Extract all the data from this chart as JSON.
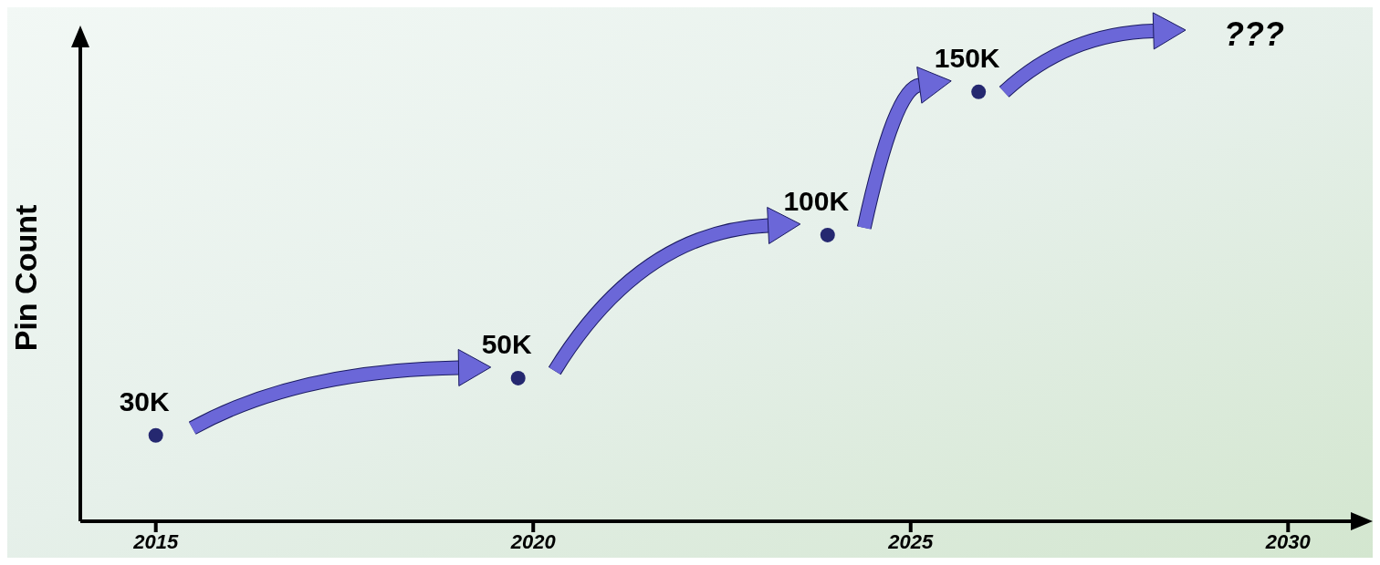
{
  "chart_data": {
    "type": "scatter",
    "ylabel": "Pin Count",
    "x": [
      2015,
      2019.8,
      2023.9,
      2025.9
    ],
    "values": [
      30,
      50,
      100,
      150
    ],
    "value_labels": [
      "30K",
      "50K",
      "100K",
      "150K"
    ],
    "color": "#252870",
    "marker": "circle",
    "xlim": [
      2014,
      2031
    ],
    "xticks": [
      2015,
      2020,
      2025,
      2030
    ],
    "ylim": [
      0,
      170
    ],
    "tick_labels": "x",
    "annotations": [
      "???"
    ]
  }
}
